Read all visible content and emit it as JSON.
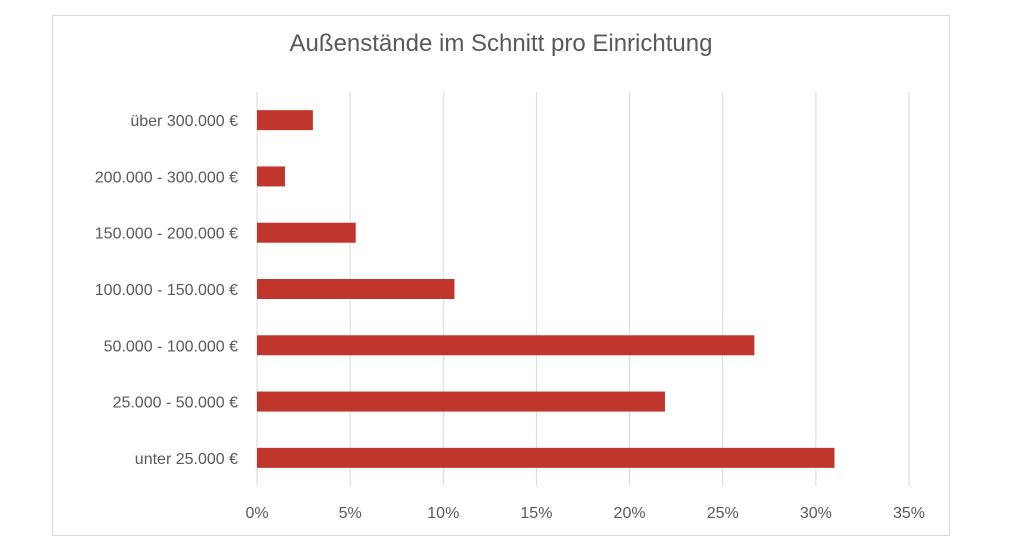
{
  "chart_data": {
    "type": "bar",
    "orientation": "horizontal",
    "title": "Außenstände im Schnitt pro Einrichtung",
    "categories": [
      "über 300.000 €",
      "200.000 - 300.000 €",
      "150.000 - 200.000 €",
      "100.000 - 150.000 €",
      "50.000 - 100.000 €",
      "25.000 - 50.000 €",
      "unter 25.000 €"
    ],
    "values": [
      3.0,
      1.5,
      5.3,
      10.6,
      26.7,
      21.9,
      31.0
    ],
    "xlim": [
      0,
      35
    ],
    "xticks": [
      "0%",
      "5%",
      "10%",
      "15%",
      "20%",
      "25%",
      "30%",
      "35%"
    ],
    "bar_color": "#c0362c",
    "grid": true,
    "legend": "none"
  }
}
